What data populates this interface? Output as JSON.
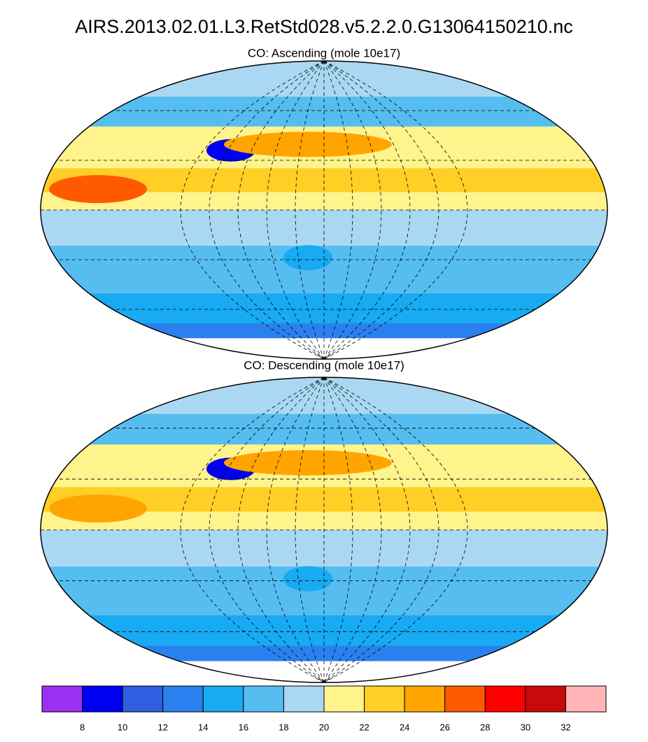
{
  "title": "AIRS.2013.02.01.L3.RetStd028.v5.2.2.0.G13064150210.nc",
  "panels": [
    {
      "subtitle": "CO: Ascending  (mole 10e17)"
    },
    {
      "subtitle": "CO: Descending  (mole 10e17)"
    }
  ],
  "colorbar": {
    "colors": [
      "#9b30f0",
      "#0000f0",
      "#2f5fe0",
      "#2a80ee",
      "#18aaf2",
      "#55bdf0",
      "#aad8f2",
      "#fff38c",
      "#ffcf25",
      "#ffa400",
      "#ff5a00",
      "#ff0000",
      "#c80a0a",
      "#ffb4b8"
    ],
    "ticks": [
      8,
      10,
      12,
      14,
      16,
      18,
      20,
      22,
      24,
      26,
      28,
      30,
      32
    ]
  }
}
